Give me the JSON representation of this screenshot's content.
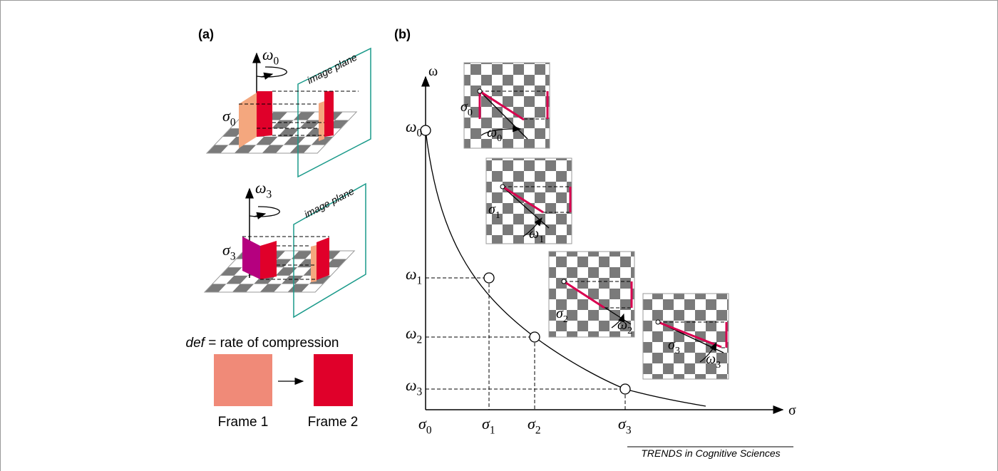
{
  "panel_a": {
    "label": "(a)",
    "top": {
      "omega": {
        "base": "ω",
        "sub": "0"
      },
      "plane": "image plane",
      "sigma": {
        "base": "σ",
        "sub": "0"
      }
    },
    "bottom": {
      "omega": {
        "base": "ω",
        "sub": "3"
      },
      "plane": "image plane",
      "sigma": {
        "base": "σ",
        "sub": "3"
      }
    },
    "caption": {
      "term": "def",
      "text": "= rate of compression"
    },
    "frames": [
      "Frame 1",
      "Frame 2"
    ]
  },
  "panel_b": {
    "label": "(b)",
    "y_axis": "ω",
    "x_axis": "σ",
    "y_labels": [
      {
        "base": "ω",
        "sub": "0"
      },
      {
        "base": "ω",
        "sub": "1"
      },
      {
        "base": "ω",
        "sub": "2"
      },
      {
        "base": "ω",
        "sub": "3"
      }
    ],
    "x_labels": [
      {
        "base": "σ",
        "sub": "0"
      },
      {
        "base": "σ",
        "sub": "1"
      },
      {
        "base": "σ",
        "sub": "2"
      },
      {
        "base": "σ",
        "sub": "3"
      }
    ],
    "insets": [
      {
        "sigma": {
          "base": "σ",
          "sub": "0"
        },
        "omega": {
          "base": "ω",
          "sub": "0"
        }
      },
      {
        "sigma": {
          "base": "σ",
          "sub": "1"
        },
        "omega": {
          "base": "ω",
          "sub": "1"
        }
      },
      {
        "sigma": {
          "base": "σ",
          "sub": "2"
        },
        "omega": {
          "base": "ω",
          "sub": "2"
        }
      },
      {
        "sigma": {
          "base": "σ",
          "sub": "3"
        },
        "omega": {
          "base": "ω",
          "sub": "3"
        }
      }
    ]
  },
  "source": "TRENDS in Cognitive Sciences"
}
